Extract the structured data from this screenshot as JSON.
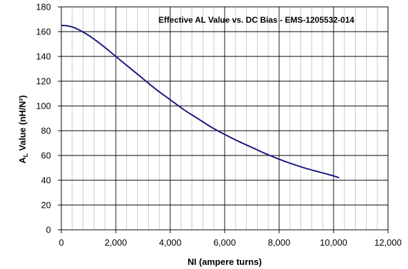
{
  "chart_data": {
    "type": "line",
    "title": "Effective AL Value vs. DC Bias - EMS-1205532-014",
    "xlabel": "NI (ampere turns)",
    "ylabel_main": "A",
    "ylabel_sub": "L",
    "ylabel_rest": " Value (nH/N²)",
    "xlim": [
      0,
      12000
    ],
    "ylim": [
      0,
      180
    ],
    "x_ticks": [
      0,
      2000,
      4000,
      6000,
      8000,
      10000,
      12000
    ],
    "x_tick_labels": [
      "0",
      "2,000",
      "4,000",
      "6,000",
      "8,000",
      "10,000",
      "12,000"
    ],
    "y_ticks": [
      0,
      20,
      40,
      60,
      80,
      100,
      120,
      140,
      160,
      180
    ],
    "y_tick_labels": [
      "0",
      "20",
      "40",
      "60",
      "80",
      "100",
      "120",
      "140",
      "160",
      "180"
    ],
    "grid": true,
    "minor_x_step": 400,
    "series": [
      {
        "color": "#1a1a80",
        "x": [
          0,
          200,
          500,
          1000,
          1500,
          2000,
          2500,
          3000,
          3500,
          4000,
          4500,
          5000,
          5500,
          6000,
          6500,
          7000,
          7500,
          8000,
          8500,
          9000,
          9500,
          10000,
          10200
        ],
        "y": [
          165,
          164.7,
          163,
          157,
          149,
          140,
          131,
          122,
          113,
          105,
          97,
          90,
          83,
          77,
          71.5,
          66.5,
          61.5,
          57,
          53,
          49.5,
          46.5,
          43.5,
          42
        ]
      }
    ]
  }
}
